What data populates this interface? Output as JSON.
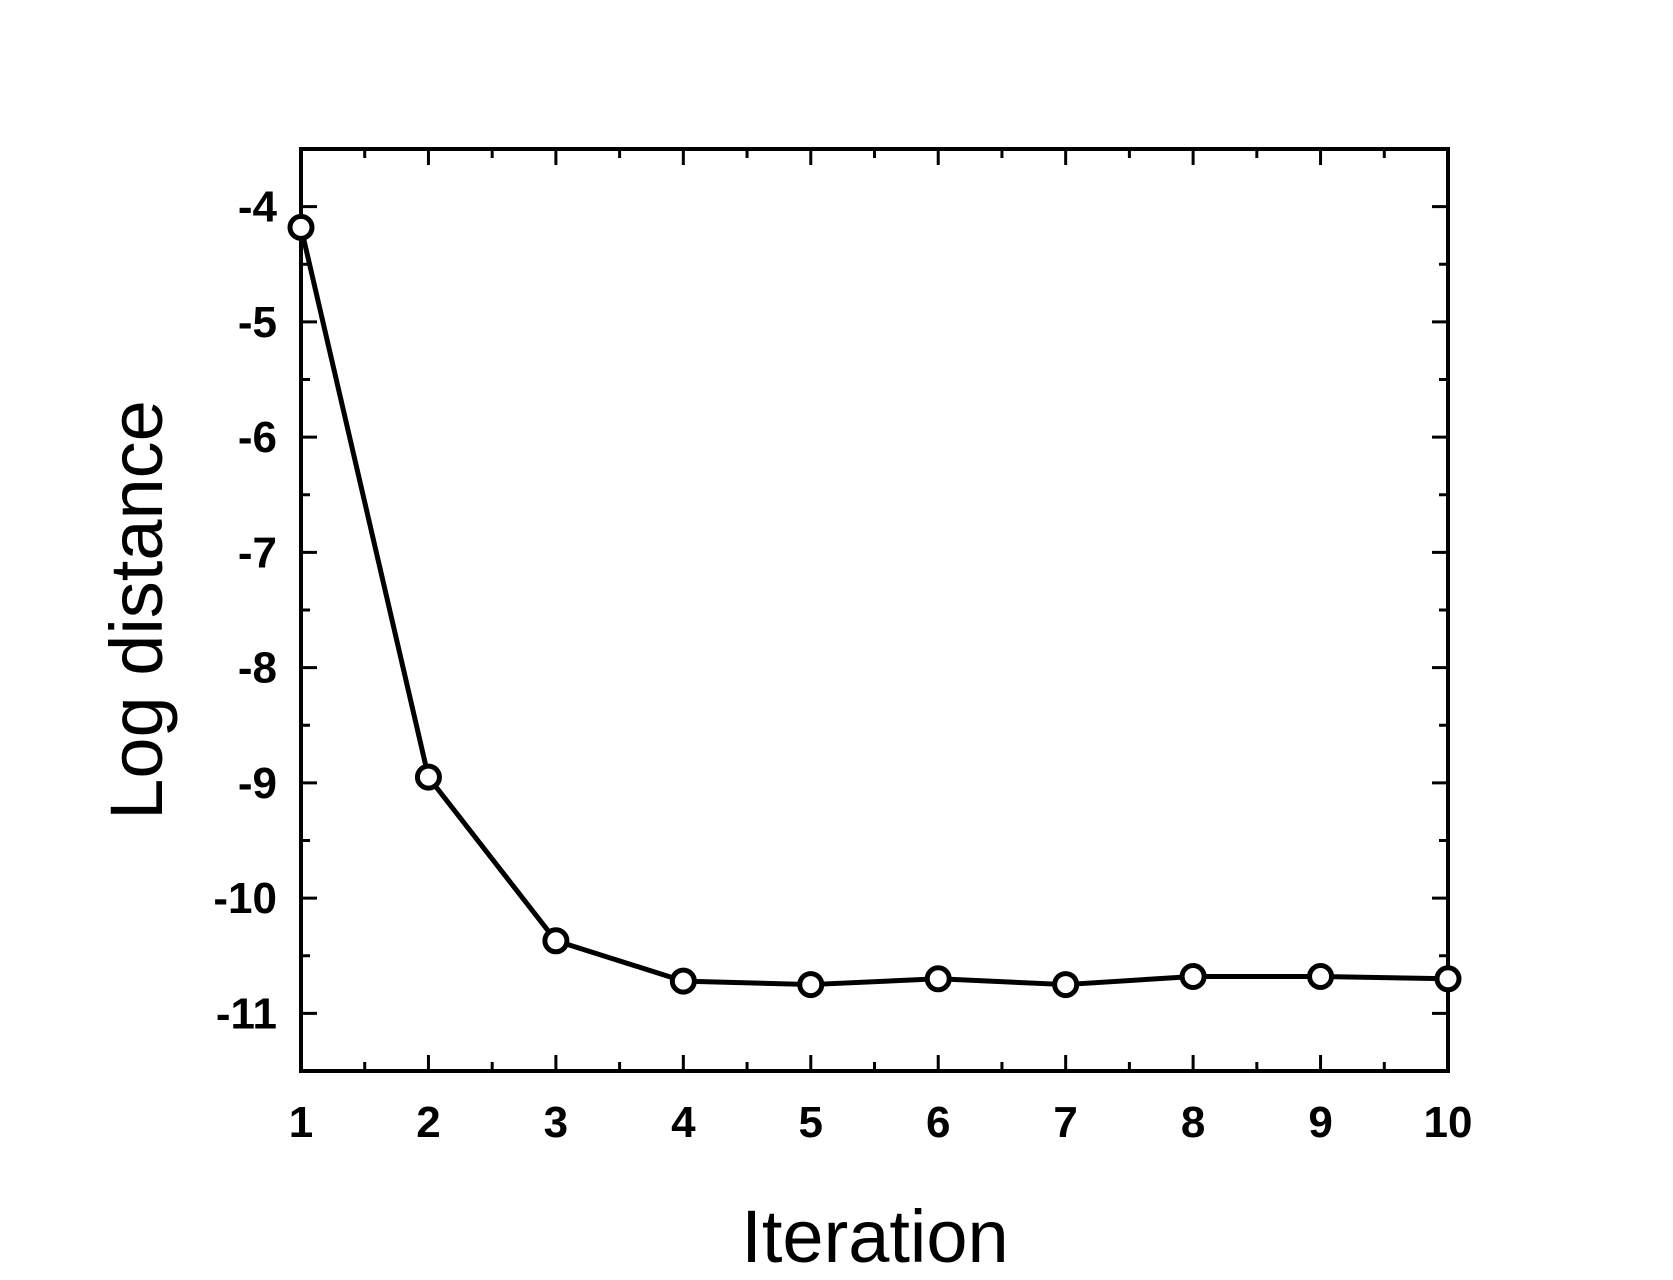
{
  "chart_data": {
    "type": "line",
    "title": "",
    "xlabel": "Iteration",
    "ylabel": "Log distance",
    "x": [
      1,
      2,
      3,
      4,
      5,
      6,
      7,
      8,
      9,
      10
    ],
    "series": [
      {
        "values": [
          -4.18,
          -8.95,
          -10.37,
          -10.72,
          -10.75,
          -10.7,
          -10.75,
          -10.68,
          -10.68,
          -10.7
        ]
      }
    ],
    "xlim": [
      1,
      10
    ],
    "ylim": [
      -11.5,
      -3.5
    ],
    "xticks": [
      "1",
      "2",
      "3",
      "4",
      "5",
      "6",
      "7",
      "8",
      "9",
      "10"
    ],
    "yticks": [
      "-4",
      "-5",
      "-6",
      "-7",
      "-8",
      "-9",
      "-10",
      "-11"
    ],
    "ytick_values": [
      -4,
      -5,
      -6,
      -7,
      -8,
      -9,
      -10,
      -11
    ],
    "grid": false,
    "legend": "none",
    "marker": "open-circle",
    "line_color": "#000000"
  }
}
